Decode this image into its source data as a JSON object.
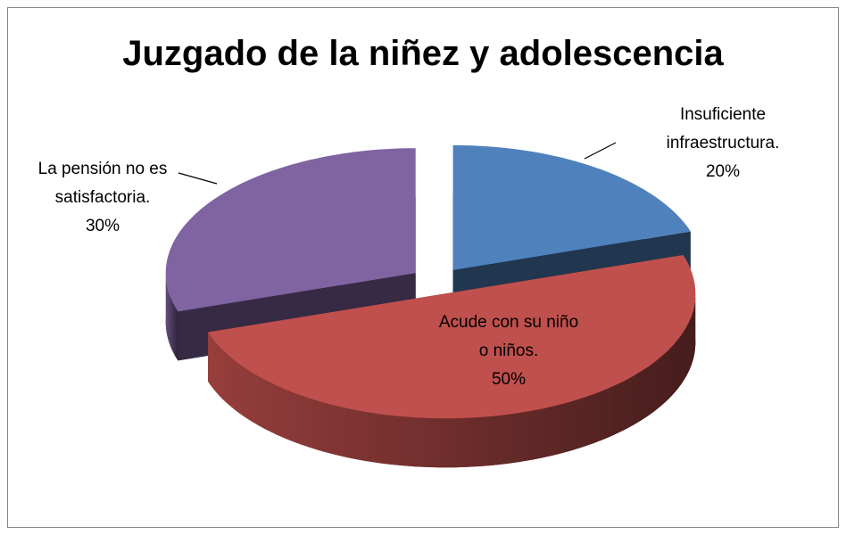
{
  "chart_data": {
    "type": "pie",
    "title": "Juzgado de la niñez y adolescencia",
    "categories": [
      "Insuficiente infraestructura.",
      "Acude con su niño o niños.",
      "La pensión no es satisfactoria."
    ],
    "values": [
      20,
      50,
      30
    ],
    "value_labels": [
      "20%",
      "50%",
      "30%"
    ],
    "colors": [
      "#4f81bd",
      "#c0504d",
      "#8064a2"
    ],
    "exploded": true,
    "three_d": true
  }
}
